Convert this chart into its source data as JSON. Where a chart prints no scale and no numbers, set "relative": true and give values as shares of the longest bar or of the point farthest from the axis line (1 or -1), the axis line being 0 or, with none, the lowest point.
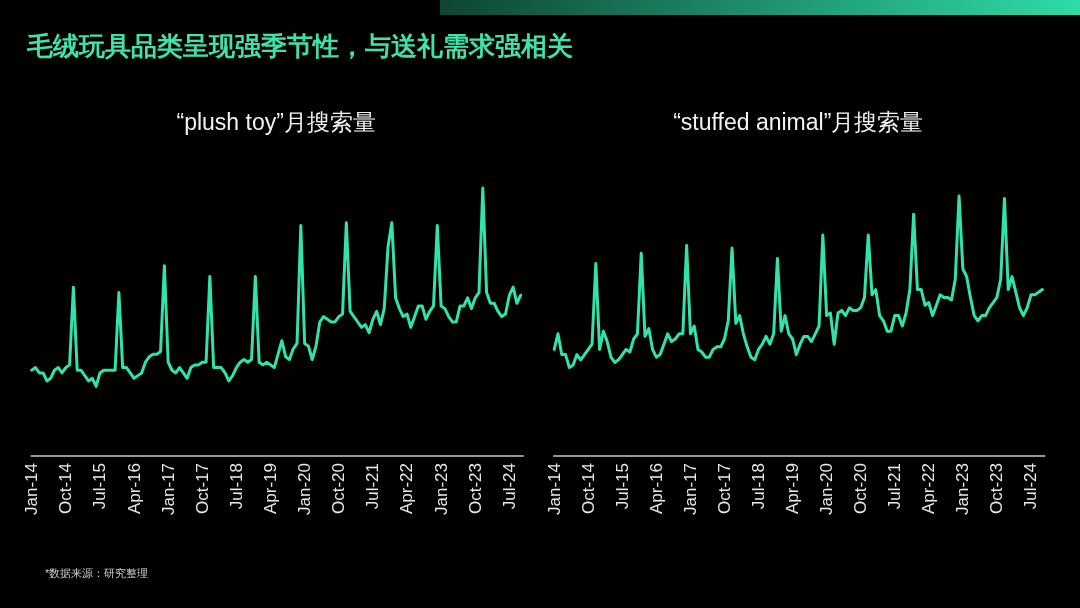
{
  "chart_data": [
    {
      "type": "other",
      "title": "毛绒玩具品类呈现强季节性，与送礼需求强相关",
      "annotations": [
        "*数据来源：研究整理"
      ]
    },
    {
      "type": "line",
      "title": "“plush toy”月搜索量",
      "relative": true,
      "categories": [
        "Jan-14",
        null,
        null,
        null,
        null,
        null,
        null,
        null,
        null,
        "Oct-14",
        null,
        null,
        null,
        null,
        null,
        null,
        null,
        null,
        "Jul-15",
        null,
        null,
        null,
        null,
        null,
        null,
        null,
        null,
        "Apr-16",
        null,
        null,
        null,
        null,
        null,
        null,
        null,
        null,
        "Jan-17",
        null,
        null,
        null,
        null,
        null,
        null,
        null,
        null,
        "Oct-17",
        null,
        null,
        null,
        null,
        null,
        null,
        null,
        null,
        "Jul-18",
        null,
        null,
        null,
        null,
        null,
        null,
        null,
        null,
        "Apr-19",
        null,
        null,
        null,
        null,
        null,
        null,
        null,
        null,
        "Jan-20",
        null,
        null,
        null,
        null,
        null,
        null,
        null,
        null,
        "Oct-20",
        null,
        null,
        null,
        null,
        null,
        null,
        null,
        null,
        "Jul-21",
        null,
        null,
        null,
        null,
        null,
        null,
        null,
        null,
        "Apr-22",
        null,
        null,
        null,
        null,
        null,
        null,
        null,
        null,
        "Jan-23",
        null,
        null,
        null,
        null,
        null,
        null,
        null,
        null,
        "Oct-23",
        null,
        null,
        null,
        null,
        null,
        null,
        null,
        null,
        "Jul-24",
        null,
        null,
        null
      ],
      "series": [
        {
          "color": "#30e3ac",
          "values": [
            0.32,
            0.33,
            0.31,
            0.31,
            0.28,
            0.29,
            0.32,
            0.33,
            0.31,
            0.33,
            0.34,
            0.63,
            0.32,
            0.32,
            0.3,
            0.28,
            0.29,
            0.26,
            0.31,
            0.32,
            0.32,
            0.32,
            0.32,
            0.61,
            0.33,
            0.33,
            0.31,
            0.29,
            0.3,
            0.31,
            0.35,
            0.37,
            0.38,
            0.38,
            0.39,
            0.71,
            0.35,
            0.32,
            0.31,
            0.33,
            0.31,
            0.29,
            0.33,
            0.34,
            0.34,
            0.35,
            0.35,
            0.67,
            0.33,
            0.33,
            0.33,
            0.31,
            0.28,
            0.3,
            0.33,
            0.35,
            0.36,
            0.35,
            0.36,
            0.67,
            0.35,
            0.34,
            0.35,
            0.34,
            0.33,
            0.38,
            0.43,
            0.37,
            0.36,
            0.4,
            0.42,
            0.86,
            0.42,
            0.41,
            0.36,
            0.41,
            0.5,
            0.52,
            0.51,
            0.5,
            0.5,
            0.52,
            0.53,
            0.87,
            0.54,
            0.52,
            0.5,
            0.48,
            0.49,
            0.46,
            0.51,
            0.54,
            0.49,
            0.55,
            0.78,
            0.87,
            0.59,
            0.55,
            0.52,
            0.53,
            0.48,
            0.52,
            0.56,
            0.56,
            0.51,
            0.54,
            0.56,
            0.86,
            0.56,
            0.55,
            0.52,
            0.5,
            0.5,
            0.56,
            0.56,
            0.59,
            0.55,
            0.59,
            0.61,
            1,
            0.61,
            0.57,
            0.57,
            0.54,
            0.52,
            0.53,
            0.6,
            0.63,
            0.57,
            0.6
          ]
        }
      ]
    },
    {
      "type": "line",
      "title": "“stuffed animal”月搜索量",
      "relative": true,
      "categories": [
        "Jan-14",
        null,
        null,
        null,
        null,
        null,
        null,
        null,
        null,
        "Oct-14",
        null,
        null,
        null,
        null,
        null,
        null,
        null,
        null,
        "Jul-15",
        null,
        null,
        null,
        null,
        null,
        null,
        null,
        null,
        "Apr-16",
        null,
        null,
        null,
        null,
        null,
        null,
        null,
        null,
        "Jan-17",
        null,
        null,
        null,
        null,
        null,
        null,
        null,
        null,
        "Oct-17",
        null,
        null,
        null,
        null,
        null,
        null,
        null,
        null,
        "Jul-18",
        null,
        null,
        null,
        null,
        null,
        null,
        null,
        null,
        "Apr-19",
        null,
        null,
        null,
        null,
        null,
        null,
        null,
        null,
        "Jan-20",
        null,
        null,
        null,
        null,
        null,
        null,
        null,
        null,
        "Oct-20",
        null,
        null,
        null,
        null,
        null,
        null,
        null,
        null,
        "Jul-21",
        null,
        null,
        null,
        null,
        null,
        null,
        null,
        null,
        "Apr-22",
        null,
        null,
        null,
        null,
        null,
        null,
        null,
        null,
        "Jan-23",
        null,
        null,
        null,
        null,
        null,
        null,
        null,
        null,
        "Oct-23",
        null,
        null,
        null,
        null,
        null,
        null,
        null,
        null,
        "Jul-24",
        null,
        null,
        null
      ],
      "series": [
        {
          "color": "#30e3ac",
          "values": [
            0.41,
            0.47,
            0.39,
            0.39,
            0.34,
            0.35,
            0.39,
            0.37,
            0.39,
            0.41,
            0.43,
            0.74,
            0.41,
            0.48,
            0.44,
            0.38,
            0.36,
            0.37,
            0.39,
            0.41,
            0.4,
            0.45,
            0.47,
            0.78,
            0.46,
            0.49,
            0.41,
            0.38,
            0.39,
            0.43,
            0.47,
            0.44,
            0.45,
            0.47,
            0.47,
            0.81,
            0.47,
            0.5,
            0.41,
            0.4,
            0.38,
            0.38,
            0.41,
            0.42,
            0.42,
            0.45,
            0.52,
            0.8,
            0.51,
            0.54,
            0.47,
            0.42,
            0.38,
            0.37,
            0.41,
            0.43,
            0.46,
            0.43,
            0.47,
            0.76,
            0.48,
            0.54,
            0.47,
            0.45,
            0.39,
            0.43,
            0.46,
            0.46,
            0.44,
            0.47,
            0.5,
            0.85,
            0.54,
            0.55,
            0.43,
            0.55,
            0.56,
            0.54,
            0.57,
            0.56,
            0.56,
            0.57,
            0.61,
            0.85,
            0.62,
            0.64,
            0.54,
            0.52,
            0.48,
            0.48,
            0.54,
            0.54,
            0.5,
            0.55,
            0.64,
            0.93,
            0.64,
            0.64,
            0.58,
            0.59,
            0.54,
            0.58,
            0.62,
            0.61,
            0.61,
            0.6,
            0.68,
            1,
            0.72,
            0.69,
            0.61,
            0.54,
            0.52,
            0.54,
            0.54,
            0.57,
            0.59,
            0.61,
            0.68,
            0.99,
            0.64,
            0.69,
            0.63,
            0.57,
            0.54,
            0.57,
            0.62,
            0.62,
            0.63,
            0.64
          ]
        }
      ]
    }
  ]
}
